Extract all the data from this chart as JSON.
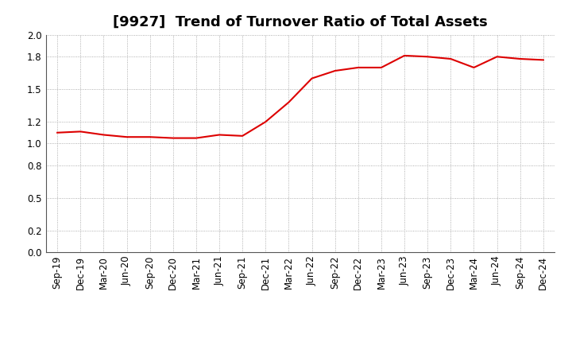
{
  "title": "[9927]  Trend of Turnover Ratio of Total Assets",
  "x_labels": [
    "Sep-19",
    "Dec-19",
    "Mar-20",
    "Jun-20",
    "Sep-20",
    "Dec-20",
    "Mar-21",
    "Jun-21",
    "Sep-21",
    "Dec-21",
    "Mar-22",
    "Jun-22",
    "Sep-22",
    "Dec-22",
    "Mar-23",
    "Jun-23",
    "Sep-23",
    "Dec-23",
    "Mar-24",
    "Jun-24",
    "Sep-24",
    "Dec-24"
  ],
  "values": [
    1.1,
    1.11,
    1.08,
    1.06,
    1.06,
    1.05,
    1.05,
    1.08,
    1.07,
    1.2,
    1.38,
    1.6,
    1.67,
    1.7,
    1.7,
    1.81,
    1.8,
    1.78,
    1.7,
    1.8,
    1.78,
    1.77
  ],
  "line_color": "#dd0000",
  "line_width": 1.5,
  "ylim": [
    0.0,
    2.0
  ],
  "yticks": [
    0.0,
    0.2,
    0.5,
    0.8,
    1.0,
    1.2,
    1.5,
    1.8,
    2.0
  ],
  "grid_color": "#999999",
  "background_color": "#ffffff",
  "title_fontsize": 13,
  "tick_fontsize": 8.5
}
